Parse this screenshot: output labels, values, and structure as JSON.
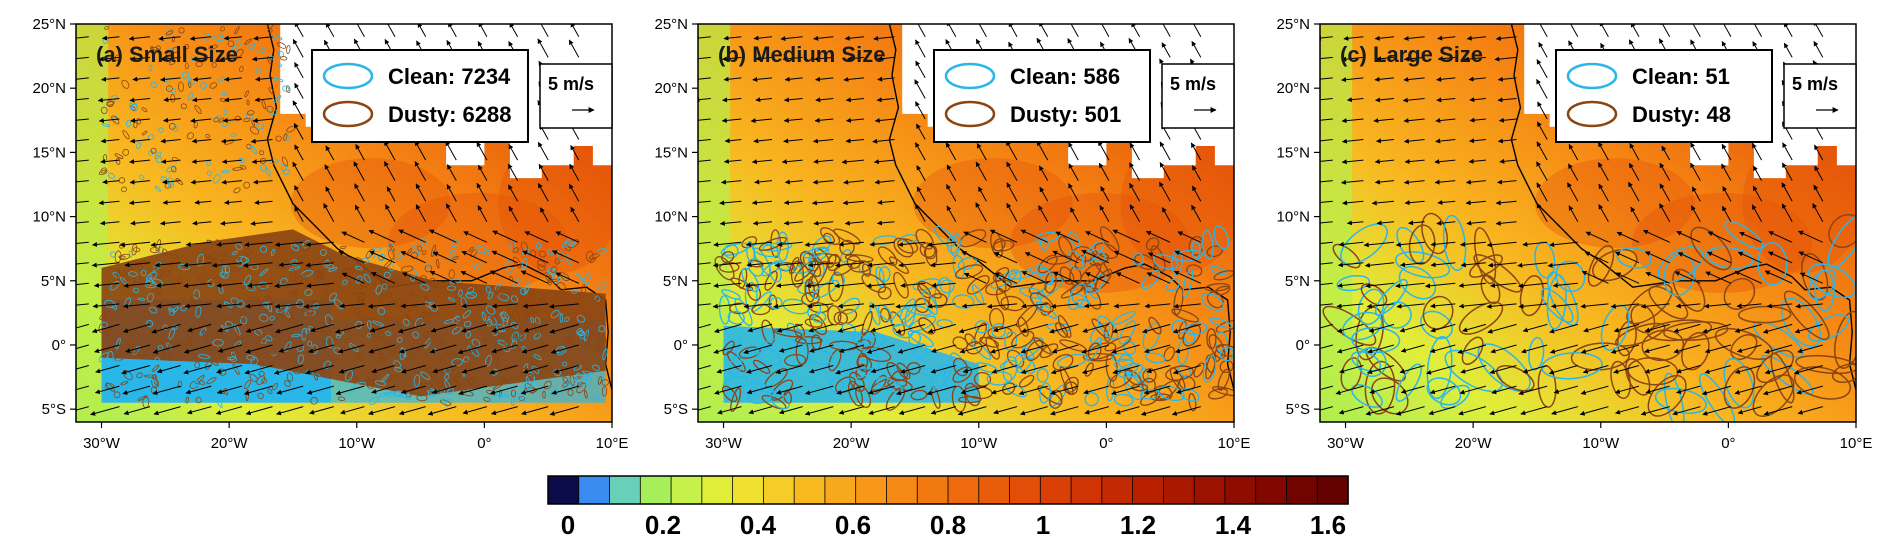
{
  "panels": [
    {
      "id": "a",
      "label": "(a) Small Size",
      "legend": {
        "clean": "Clean: 7234",
        "dusty": "Dusty: 6288"
      },
      "speed_key": "5 m/s",
      "size_class": "small"
    },
    {
      "id": "b",
      "label": "(b) Medium Size",
      "legend": {
        "clean": "Clean: 586",
        "dusty": "Dusty: 501"
      },
      "speed_key": "5 m/s",
      "size_class": "medium"
    },
    {
      "id": "c",
      "label": "(c) Large Size",
      "legend": {
        "clean": "Clean: 51",
        "dusty": "Dusty: 48"
      },
      "speed_key": "5 m/s",
      "size_class": "large"
    }
  ],
  "axes": {
    "lon_ticks": [
      "30°W",
      "20°W",
      "10°W",
      "0°",
      "10°E"
    ],
    "lat_ticks": [
      "25°N",
      "20°N",
      "15°N",
      "10°N",
      "5°N",
      "0°",
      "5°S"
    ],
    "lon_range": [
      -32,
      10
    ],
    "lat_range": [
      -6,
      25
    ]
  },
  "colorbar": {
    "ticks": [
      "0",
      "0.2",
      "0.4",
      "0.6",
      "0.8",
      "1",
      "1.2",
      "1.4",
      "1.6"
    ],
    "range": [
      0,
      1.6
    ],
    "colors": [
      "#0b0b4a",
      "#3b8cf0",
      "#66d0b8",
      "#a6ef5a",
      "#c6f04a",
      "#e0ee3a",
      "#f0e030",
      "#f6cc28",
      "#f8b820",
      "#f8a81c",
      "#f89818",
      "#f68814",
      "#f27810",
      "#ee6a0c",
      "#e85c0a",
      "#e24e08",
      "#da4006",
      "#d03404",
      "#c42a02",
      "#b82000",
      "#aa1800",
      "#9c1200",
      "#8e0c00",
      "#800800",
      "#720400",
      "#640200"
    ]
  },
  "legend_colors": {
    "clean": "#29b6e8",
    "dusty": "#8b4513"
  }
}
